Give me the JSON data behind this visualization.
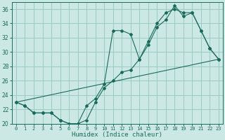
{
  "xlabel": "Humidex (Indice chaleur)",
  "bg_color": "#cce8e4",
  "grid_color": "#99ccc4",
  "line_color": "#1a6b5a",
  "xlim": [
    -0.5,
    23.5
  ],
  "ylim": [
    20,
    37
  ],
  "xticks": [
    0,
    1,
    2,
    3,
    4,
    5,
    6,
    7,
    8,
    9,
    10,
    11,
    12,
    13,
    14,
    15,
    16,
    17,
    18,
    19,
    20,
    21,
    22,
    23
  ],
  "yticks": [
    20,
    22,
    24,
    26,
    28,
    30,
    32,
    34,
    36
  ],
  "line1_x": [
    0,
    1,
    2,
    3,
    4,
    5,
    6,
    7,
    8,
    9,
    10,
    11,
    12,
    13,
    14,
    15,
    16,
    17,
    18,
    19,
    20,
    21,
    22,
    23
  ],
  "line1_y": [
    23.0,
    22.5,
    21.5,
    21.5,
    21.5,
    20.5,
    20.0,
    20.0,
    20.5,
    23.0,
    25.0,
    26.0,
    27.2,
    27.5,
    29.0,
    31.0,
    33.5,
    34.5,
    36.5,
    35.0,
    35.5,
    33.0,
    30.5,
    29.0
  ],
  "line2_x": [
    0,
    1,
    2,
    3,
    4,
    5,
    6,
    7,
    8,
    9,
    10,
    11,
    12,
    13,
    14,
    15,
    16,
    17,
    18,
    19,
    20,
    21,
    22,
    23
  ],
  "line2_y": [
    23.0,
    22.5,
    21.5,
    21.5,
    21.5,
    20.5,
    20.0,
    20.0,
    22.5,
    23.5,
    25.5,
    33.0,
    33.0,
    32.5,
    29.0,
    31.5,
    34.0,
    35.5,
    36.0,
    35.5,
    35.5,
    33.0,
    30.5,
    29.0
  ],
  "line3_x": [
    0,
    23
  ],
  "line3_y": [
    23.0,
    29.0
  ]
}
